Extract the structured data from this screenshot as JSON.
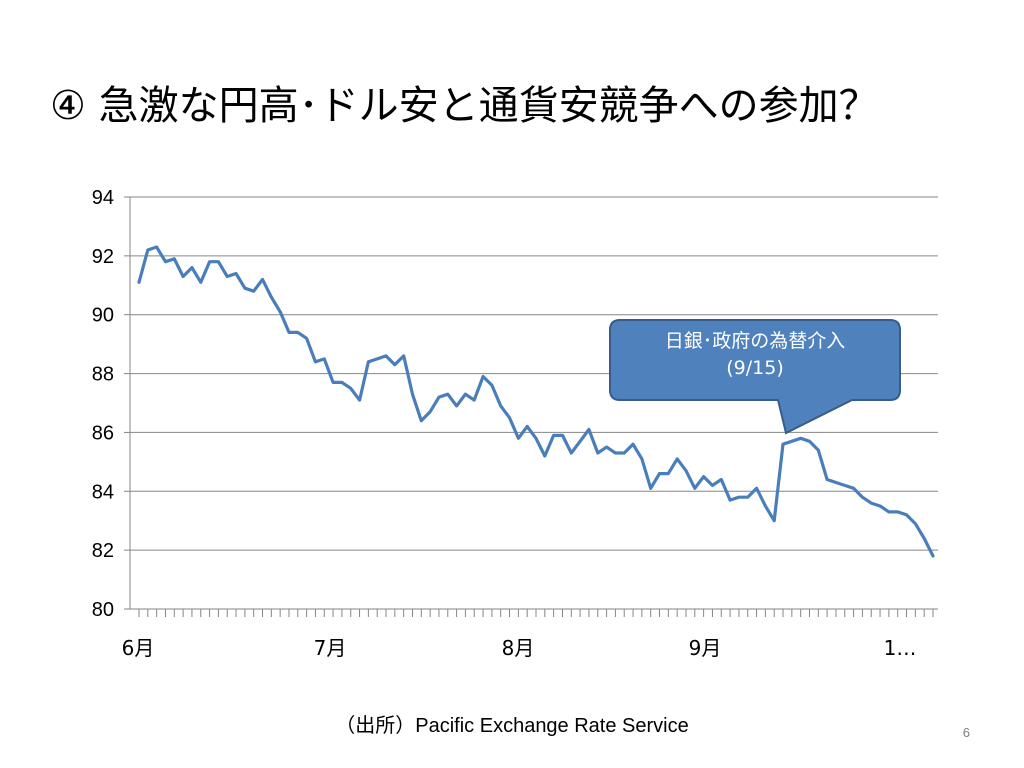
{
  "slide": {
    "title": "④ 急激な円高･ドル安と通貨安競争への参加？",
    "source": "（出所）Pacific Exchange Rate Service",
    "page_number": "6"
  },
  "colors": {
    "line": "#4a7ebb",
    "callout_fill": "#4f81bd",
    "callout_stroke": "#385d8a",
    "grid": "#868686"
  },
  "chart_data": {
    "type": "line",
    "title": "",
    "xlabel": "",
    "ylabel": "",
    "ylim": [
      80,
      94
    ],
    "yticks": [
      80,
      82,
      84,
      86,
      88,
      90,
      92,
      94
    ],
    "x_tick_labels": [
      "6月",
      "7月",
      "8月",
      "9月",
      "1…"
    ],
    "grid": "horizontal",
    "legend": "none",
    "series": [
      {
        "values": [
          91.1,
          92.2,
          92.3,
          91.8,
          91.9,
          91.3,
          91.6,
          91.1,
          91.8,
          91.8,
          91.3,
          91.4,
          90.9,
          90.8,
          91.2,
          90.6,
          90.1,
          89.4,
          89.4,
          89.2,
          88.4,
          88.5,
          87.7,
          87.7,
          87.5,
          87.1,
          88.4,
          88.5,
          88.6,
          88.3,
          88.6,
          87.3,
          86.4,
          86.7,
          87.2,
          87.3,
          86.9,
          87.3,
          87.1,
          87.9,
          87.6,
          86.9,
          86.5,
          85.8,
          86.2,
          85.8,
          85.2,
          85.9,
          85.9,
          85.3,
          85.7,
          86.1,
          85.3,
          85.5,
          85.3,
          85.3,
          85.6,
          85.1,
          84.1,
          84.6,
          84.6,
          85.1,
          84.7,
          84.1,
          84.5,
          84.2,
          84.4,
          83.7,
          83.8,
          83.8,
          84.1,
          83.5,
          83.0,
          85.6,
          85.7,
          85.8,
          85.7,
          85.4,
          84.4,
          84.3,
          84.2,
          84.1,
          83.8,
          83.6,
          83.5,
          83.3,
          83.3,
          83.2,
          82.9,
          82.4,
          81.8
        ]
      }
    ],
    "annotation": {
      "line1": "日銀･政府の為替介入",
      "line2": "(9/15)"
    }
  }
}
